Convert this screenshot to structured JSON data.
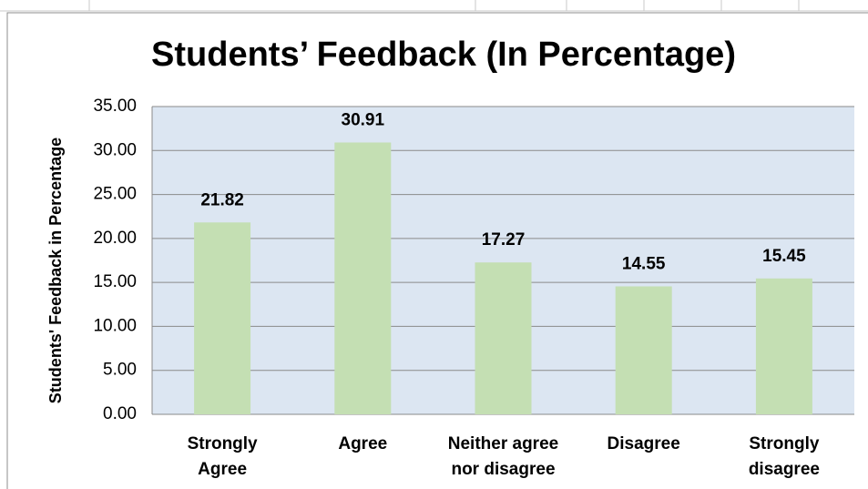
{
  "chart_data": {
    "type": "bar",
    "title": "Students’ Feedback (In Percentage)",
    "y_label": "Students' Feedback in Percentage",
    "categories": [
      "Strongly Agree",
      "Agree",
      "Neither agree nor disagree",
      "Disagree",
      "Strongly disagree"
    ],
    "values": [
      21.82,
      30.91,
      17.27,
      14.55,
      15.45
    ],
    "color": "#c4dfb3",
    "ylim": [
      0,
      35
    ],
    "yticks": [
      {
        "value": 0,
        "label": "0.00"
      },
      {
        "value": 5,
        "label": "5.00"
      },
      {
        "value": 10,
        "label": "10.00"
      },
      {
        "value": 15,
        "label": "15.00"
      },
      {
        "value": 20,
        "label": "20.00"
      },
      {
        "value": 25,
        "label": "25.00"
      },
      {
        "value": 30,
        "label": "30.00"
      },
      {
        "value": 35,
        "label": "35.00"
      }
    ],
    "grid": true
  }
}
